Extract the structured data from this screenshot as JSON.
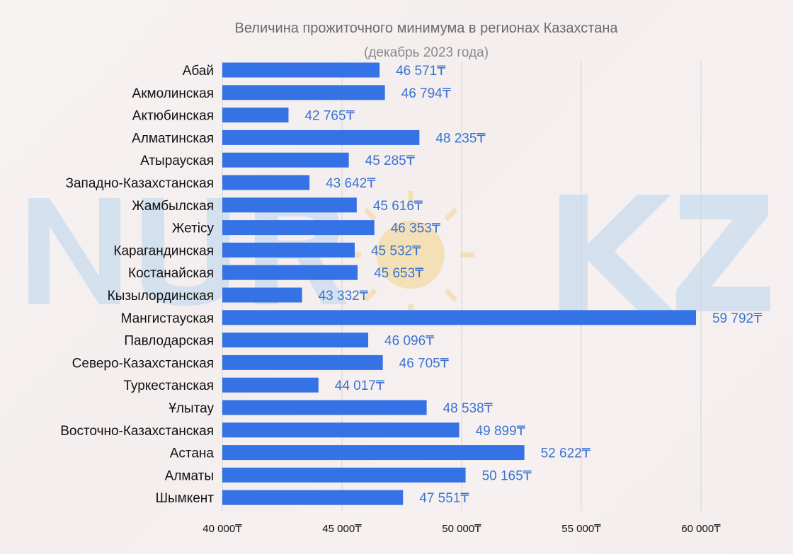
{
  "colors": {
    "bar": "#3572e6",
    "value_label": "#3b73d1",
    "grid": "#d4d4d4",
    "watermark": "#b9d4ee",
    "sun": "#f3d58a"
  },
  "watermark": {
    "name": "nur-kz-logo"
  },
  "chart_data": {
    "type": "bar",
    "orientation": "horizontal",
    "title": "Величина прожиточного минимума в регионах Казахстана",
    "subtitle": "(декабрь 2023 года)",
    "xlabel": "",
    "ylabel": "",
    "xlim": [
      40000,
      60000
    ],
    "xticks": [
      40000,
      45000,
      50000,
      55000,
      60000
    ],
    "xtick_labels": [
      "40 000₸",
      "45 000₸",
      "50 000₸",
      "55 000₸",
      "60 000₸"
    ],
    "grid": true,
    "legend": "none",
    "categories": [
      "Абай",
      "Акмолинская",
      "Актюбинская",
      "Алматинская",
      "Атырауская",
      "Западно-Казахстанская",
      "Жамбылская",
      "Жетісу",
      "Карагандинская",
      "Костанайская",
      "Кызылординская",
      "Мангистауская",
      "Павлодарская",
      "Северо-Казахстанская",
      "Туркестанская",
      "Ұлытау",
      "Восточно-Казахстанская",
      "Астана",
      "Алматы",
      "Шымкент"
    ],
    "values": [
      46571,
      46794,
      42765,
      48235,
      45285,
      43642,
      45616,
      46353,
      45532,
      45653,
      43332,
      59792,
      46096,
      46705,
      44017,
      48538,
      49899,
      52622,
      50165,
      47551
    ],
    "value_labels": [
      "46 571₸",
      "46 794₸",
      "42 765₸",
      "48 235₸",
      "45 285₸",
      "43 642₸",
      "45 616₸",
      "46 353₸",
      "45 532₸",
      "45 653₸",
      "43 332₸",
      "59 792₸",
      "46 096₸",
      "46 705₸",
      "44 017₸",
      "48 538₸",
      "49 899₸",
      "52 622₸",
      "50 165₸",
      "47 551₸"
    ]
  }
}
